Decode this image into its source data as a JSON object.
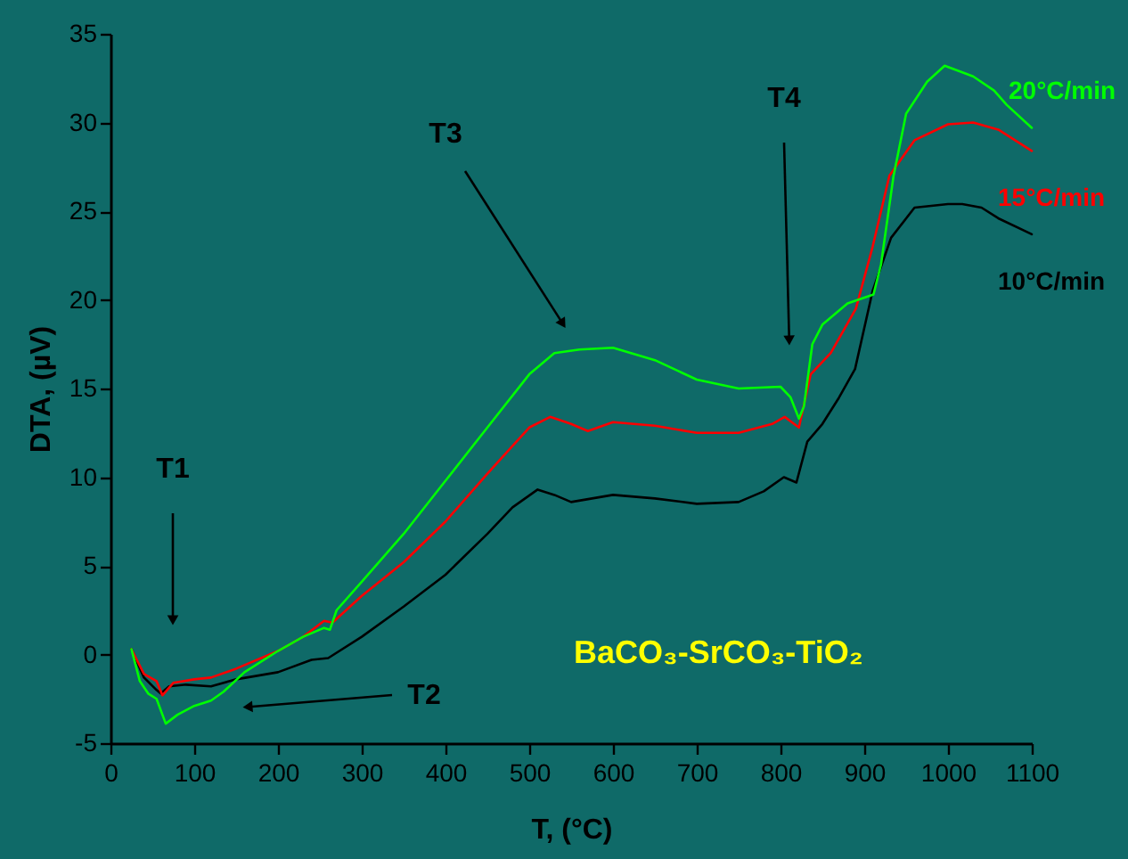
{
  "chart_data": {
    "type": "line",
    "xlabel": "T, (°C)",
    "ylabel": "DTA, (µV)",
    "xlim": [
      0,
      1100
    ],
    "xticks": [
      0,
      100,
      200,
      300,
      400,
      500,
      600,
      700,
      800,
      900,
      {
        "value": 1000,
        "label": "1000"
      },
      {
        "value": 1100,
        "label": "1100"
      }
    ],
    "ylim": [
      -5,
      35
    ],
    "yticks": [
      -5,
      0,
      5,
      10,
      15,
      20,
      25,
      30,
      35
    ],
    "grid": false,
    "marker": "none",
    "line_style": "solid",
    "series": [
      {
        "name": "10°C/min",
        "color": "#000000",
        "x": [
          25,
          40,
          55,
          60,
          70,
          90,
          120,
          150,
          200,
          240,
          260,
          300,
          350,
          400,
          450,
          480,
          510,
          530,
          550,
          600,
          650,
          700,
          750,
          780,
          804,
          819,
          832,
          850,
          870,
          889,
          910,
          932,
          960,
          1000,
          1017,
          1040,
          1060,
          1100
        ],
        "values": [
          0.3,
          -1.3,
          -2.0,
          -2.2,
          -1.8,
          -1.7,
          -1.8,
          -1.4,
          -1.0,
          -0.3,
          -0.2,
          1.0,
          2.7,
          4.5,
          6.8,
          8.3,
          9.3,
          9.0,
          8.6,
          9.0,
          8.8,
          8.5,
          8.6,
          9.2,
          10.0,
          9.7,
          12.0,
          13.0,
          14.5,
          16.1,
          20.5,
          23.5,
          25.2,
          25.4,
          25.4,
          25.2,
          24.6,
          23.7
        ]
      },
      {
        "name": "15°C/min",
        "color": "#ff0000",
        "x": [
          25,
          40,
          55,
          62,
          75,
          100,
          120,
          150,
          200,
          230,
          255,
          265,
          300,
          350,
          400,
          450,
          500,
          525,
          550,
          570,
          600,
          650,
          700,
          750,
          790,
          805,
          822,
          836,
          860,
          890,
          910,
          930,
          960,
          1000,
          1030,
          1060,
          1100
        ],
        "values": [
          0.3,
          -1.1,
          -1.5,
          -2.3,
          -1.6,
          -1.4,
          -1.3,
          -0.8,
          0.2,
          1.0,
          1.9,
          1.8,
          3.3,
          5.2,
          7.5,
          10.2,
          12.8,
          13.4,
          13.0,
          12.6,
          13.1,
          12.9,
          12.5,
          12.5,
          13.0,
          13.4,
          12.8,
          15.8,
          17.0,
          19.5,
          23.0,
          27.0,
          29.0,
          29.9,
          30.0,
          29.6,
          28.4
        ]
      },
      {
        "name": "20°C/min",
        "color": "#00ff00",
        "x": [
          25,
          35,
          45,
          55,
          66,
          80,
          100,
          120,
          135,
          160,
          200,
          230,
          255,
          262,
          270,
          300,
          350,
          400,
          450,
          500,
          530,
          560,
          600,
          650,
          700,
          750,
          800,
          812,
          822,
          828,
          838,
          850,
          880,
          911,
          920,
          935,
          950,
          975,
          996,
          1030,
          1055,
          1070,
          1100
        ],
        "values": [
          0.3,
          -1.5,
          -2.2,
          -2.5,
          -3.9,
          -3.4,
          -2.9,
          -2.6,
          -2.1,
          -1.0,
          0.2,
          1.0,
          1.5,
          1.4,
          2.5,
          4.1,
          6.8,
          9.8,
          12.8,
          15.8,
          17.0,
          17.2,
          17.3,
          16.6,
          15.5,
          15.0,
          15.1,
          14.5,
          13.3,
          14.0,
          17.5,
          18.6,
          19.8,
          20.3,
          22.0,
          27.0,
          30.5,
          32.3,
          33.2,
          32.6,
          31.8,
          31.0,
          29.7
        ]
      }
    ],
    "annotations": [
      "T1",
      "T2",
      "T3",
      "T4",
      "BaCO₃-SrCO₃-TiO₂"
    ]
  }
}
